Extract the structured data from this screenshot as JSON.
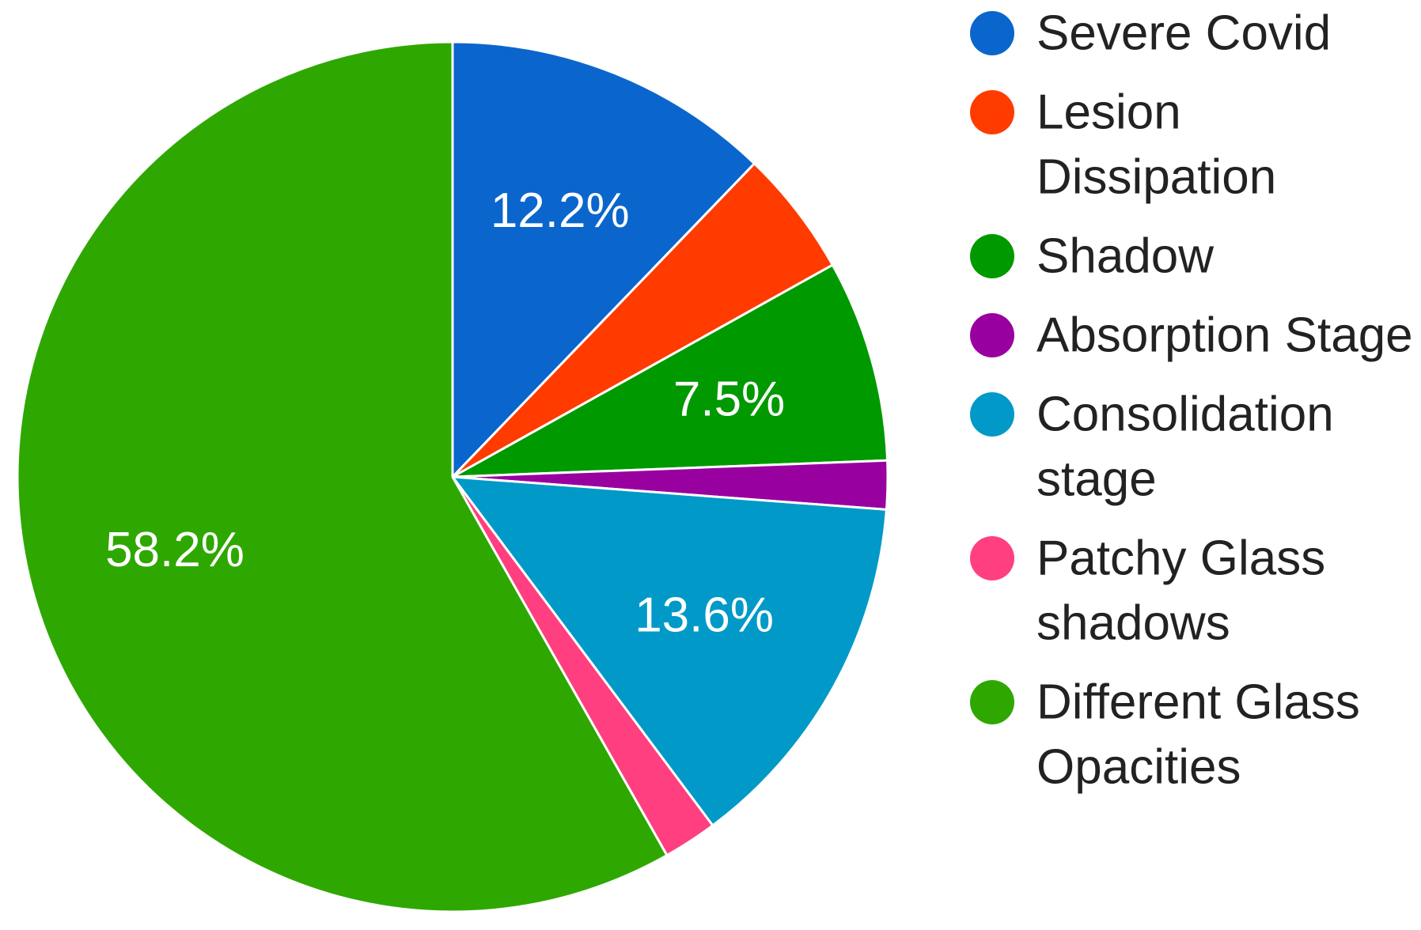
{
  "chart_data": {
    "type": "pie",
    "title": "",
    "start_angle_deg": 0,
    "direction": "clockwise",
    "legend_position": "right",
    "slices": [
      {
        "name": "Severe Covid",
        "legend_lines": [
          "Severe Covid"
        ],
        "value": 12.2,
        "label": "12.2%",
        "color": "#0A66CC"
      },
      {
        "name": "Lesion Dissipation",
        "legend_lines": [
          "Lesion",
          "Dissipation"
        ],
        "value": 4.7,
        "label": "",
        "color": "#FF3B00"
      },
      {
        "name": "Shadow",
        "legend_lines": [
          "Shadow"
        ],
        "value": 7.5,
        "label": "7.5%",
        "color": "#009900"
      },
      {
        "name": "Absorption Stage",
        "legend_lines": [
          "Absorption Stage"
        ],
        "value": 1.8,
        "label": "",
        "color": "#9900A0"
      },
      {
        "name": "Consolidation stage",
        "legend_lines": [
          "Consolidation",
          "stage"
        ],
        "value": 13.6,
        "label": "13.6%",
        "color": "#0099C8"
      },
      {
        "name": "Patchy Glass shadows",
        "legend_lines": [
          "Patchy Glass",
          "shadows"
        ],
        "value": 2.0,
        "label": "",
        "color": "#FF3F7F"
      },
      {
        "name": "Different Glass Opacities",
        "legend_lines": [
          "Different Glass",
          "Opacities"
        ],
        "value": 58.2,
        "label": "58.2%",
        "color": "#2EA800"
      }
    ]
  }
}
